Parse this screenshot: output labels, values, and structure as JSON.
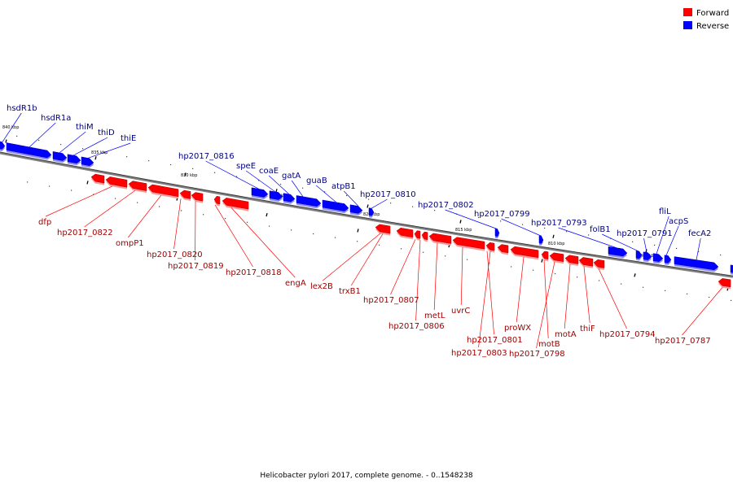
{
  "caption": "Helicobacter pylori 2017, complete genome. - 0..1548238",
  "legend": [
    {
      "label": "Forward",
      "color": "#ff0000"
    },
    {
      "label": "Reverse",
      "color": "#0000ff"
    }
  ],
  "colors": {
    "forward": "#ff0000",
    "reverse": "#0000ff",
    "backbone": "#808080"
  },
  "ticks": [
    "840 kbp",
    "835 kbp",
    "830 kbp",
    "825 kbp",
    "820 kbp",
    "815 kbp",
    "810 kbp",
    "805 kbp"
  ],
  "reverse_genes": [
    "hsdR1b",
    "hsdR1a",
    "thiM",
    "thiD",
    "thiE",
    "hp2017_0816",
    "speE",
    "coaE",
    "gatA",
    "guaB",
    "atpB1",
    "hp2017_0810",
    "hp2017_0802",
    "hp2017_0799",
    "hp2017_0793",
    "folB1",
    "hp2017_0791",
    "fliL",
    "acpS",
    "fecA2"
  ],
  "forward_genes": [
    "dfp",
    "hp2017_0822",
    "ompP1",
    "hp2017_0820",
    "hp2017_0819",
    "hp2017_0818",
    "engA",
    "lex2B",
    "trxB1",
    "hp2017_0807",
    "hp2017_0806",
    "metL",
    "uvrC",
    "hp2017_0801",
    "hp2017_0803",
    "proWX",
    "motB",
    "hp2017_0798",
    "motA",
    "thiF",
    "hp2017_0794",
    "hp2017_0787"
  ]
}
